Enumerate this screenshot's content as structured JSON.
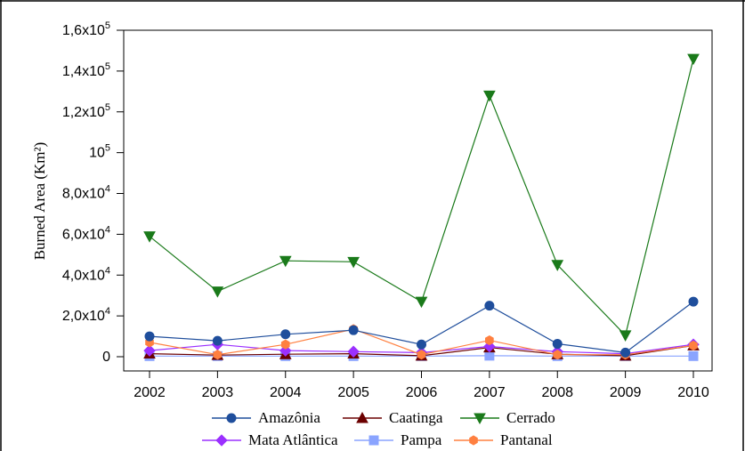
{
  "chart_data": {
    "type": "line",
    "title": "",
    "xlabel": "",
    "ylabel": "Burned Area (Km²)",
    "x": [
      2002,
      2003,
      2004,
      2005,
      2006,
      2007,
      2008,
      2009,
      2010
    ],
    "xticks": [
      "2002",
      "2003",
      "2004",
      "2005",
      "2006",
      "2007",
      "2008",
      "2009",
      "2010"
    ],
    "ylim": [
      0,
      160000
    ],
    "yticks": [
      {
        "value": 0,
        "label": "0",
        "sup": ""
      },
      {
        "value": 20000,
        "label": "2,0x10",
        "sup": "4"
      },
      {
        "value": 40000,
        "label": "4,0x10",
        "sup": "4"
      },
      {
        "value": 60000,
        "label": "6,0x10",
        "sup": "4"
      },
      {
        "value": 80000,
        "label": "8,0x10",
        "sup": "4"
      },
      {
        "value": 100000,
        "label": "10",
        "sup": "5"
      },
      {
        "value": 120000,
        "label": "1,2x10",
        "sup": "5"
      },
      {
        "value": 140000,
        "label": "1,4x10",
        "sup": "5"
      },
      {
        "value": 160000,
        "label": "1,6x10",
        "sup": "5"
      }
    ],
    "grid": false,
    "legend_position": "bottom",
    "series": [
      {
        "name": "Amazônia",
        "color": "#1f4e9c",
        "marker": "circle",
        "values": [
          10000,
          7800,
          11000,
          13000,
          6000,
          25000,
          6300,
          2000,
          27000
        ]
      },
      {
        "name": "Caatinga",
        "color": "#6b0000",
        "marker": "triangle-up",
        "values": [
          1500,
          800,
          1200,
          1500,
          500,
          4500,
          1200,
          500,
          5500
        ]
      },
      {
        "name": "Cerrado",
        "color": "#1a7a1a",
        "marker": "triangle-down",
        "values": [
          59000,
          32000,
          47000,
          46500,
          27000,
          128000,
          45000,
          10500,
          146000
        ]
      },
      {
        "name": "Mata Atlântica",
        "color": "#9b30ff",
        "marker": "diamond",
        "values": [
          3000,
          6000,
          3000,
          2500,
          2000,
          5000,
          2500,
          1500,
          6000
        ]
      },
      {
        "name": "Pampa",
        "color": "#8aa4ff",
        "marker": "square",
        "values": [
          300,
          300,
          300,
          300,
          300,
          500,
          300,
          300,
          300
        ]
      },
      {
        "name": "Pantanal",
        "color": "#ff8040",
        "marker": "hexagon",
        "values": [
          7000,
          1000,
          6000,
          13500,
          1000,
          8000,
          1000,
          1000,
          5500
        ]
      }
    ]
  }
}
